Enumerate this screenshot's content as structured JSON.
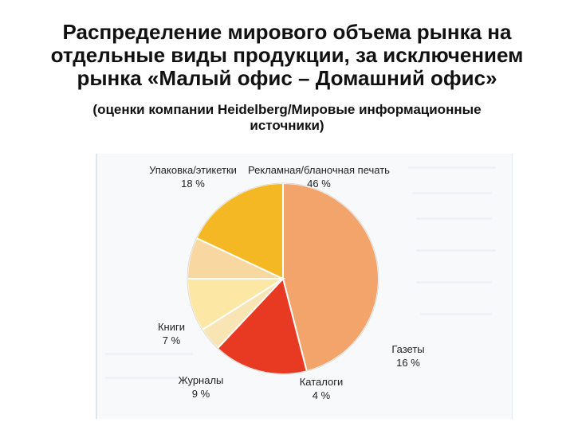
{
  "title_lines": [
    "Распределение мирового объема рынка на",
    "отдельные виды продукции, за исключением",
    "рынка «Малый офис – Домашний офис»"
  ],
  "subtitle_lines": [
    "(оценки компании Heidelberg/Мировые информационные",
    "источники)"
  ],
  "chart_data": {
    "type": "pie",
    "title": "",
    "slices": [
      {
        "name": "Рекламная/бланочная печать",
        "value": 46,
        "label": "46 %",
        "color": "#f2a46a"
      },
      {
        "name": "Газеты",
        "value": 16,
        "label": "16 %",
        "color": "#e83a22"
      },
      {
        "name": "Каталоги",
        "value": 4,
        "label": "4 %",
        "color": "#f9e4b4"
      },
      {
        "name": "Журналы",
        "value": 9,
        "label": "9 %",
        "color": "#fce8a4"
      },
      {
        "name": "Книги",
        "value": 7,
        "label": "7 %",
        "color": "#f9d7a0"
      },
      {
        "name": "Упаковка/этикетки",
        "value": 18,
        "label": "18 %",
        "color": "#f4b824"
      }
    ],
    "start": "12 o'clock",
    "direction": "clockwise",
    "legend": "none (labels placed around pie)"
  }
}
